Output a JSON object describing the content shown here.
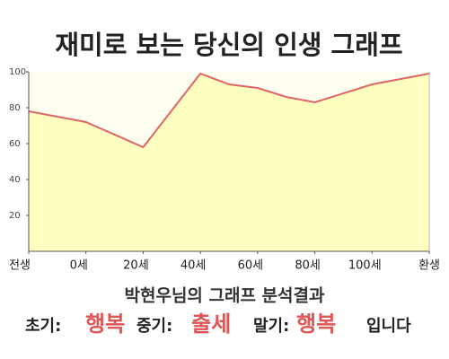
{
  "chart_data": {
    "type": "area",
    "title": "재미로 보는 당신의 인생 그래프",
    "x": [
      -20,
      0,
      20,
      40,
      50,
      60,
      70,
      80,
      100,
      120
    ],
    "values": [
      78,
      72,
      58,
      99,
      93,
      91,
      86,
      83,
      93,
      99
    ],
    "color": "#e06666",
    "fill": "#ffffc0",
    "background": "#fffff0",
    "xlim": [
      -20,
      120
    ],
    "xticks": [
      {
        "value": -20,
        "label": "전생"
      },
      {
        "value": 0,
        "label": "0세"
      },
      {
        "value": 20,
        "label": "20세"
      },
      {
        "value": 40,
        "label": "40세"
      },
      {
        "value": 60,
        "label": "60세"
      },
      {
        "value": 80,
        "label": "80세"
      },
      {
        "value": 100,
        "label": "100세"
      },
      {
        "value": 120,
        "label": "환생"
      }
    ],
    "ylim": [
      0,
      100
    ],
    "yticks": [
      20,
      40,
      60,
      80,
      100
    ]
  },
  "result": {
    "heading": "박현우님의 그래프 분석결과",
    "early_label": "초기:",
    "early": "행복",
    "middle_label": "중기:",
    "middle": "출세",
    "late_label": "말기:",
    "late": "행복",
    "ending": "입니다"
  }
}
